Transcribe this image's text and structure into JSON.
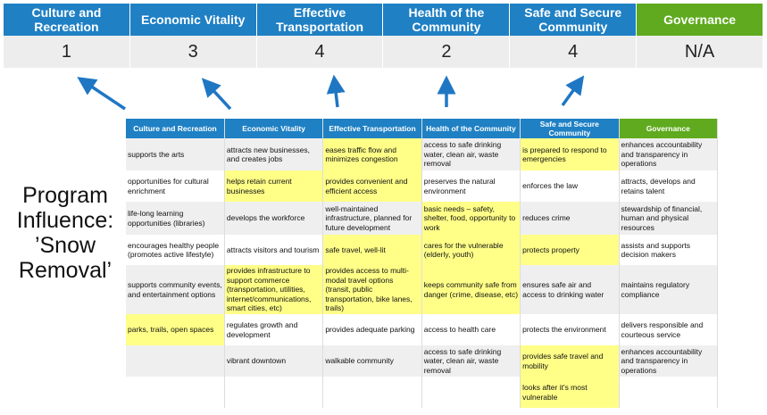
{
  "categories": [
    "Culture and Recreation",
    "Economic Vitality",
    "Effective Transportation",
    "Health of the Community",
    "Safe and Secure Community",
    "Governance"
  ],
  "scores": [
    "1",
    "3",
    "4",
    "2",
    "4",
    "N/A"
  ],
  "program_label": "Program Influence: ’Snow Removal’",
  "colors": {
    "header_blue": "#1F80C4",
    "governance_green": "#5FAA1E",
    "highlight_yellow": "#FFFF88",
    "arrow": "#1F77C4"
  },
  "table": {
    "headers": [
      "Culture and Recreation",
      "Economic Vitality",
      "Effective Transportation",
      "Health of the Community",
      "Safe and Secure Community",
      "Governance"
    ],
    "rows": [
      [
        {
          "t": "supports the arts"
        },
        {
          "t": "attracts new businesses, and creates jobs"
        },
        {
          "t": "eases traffic flow and minimizes congestion",
          "h": true
        },
        {
          "t": "access to safe drinking water, clean air, waste removal"
        },
        {
          "t": "is prepared to respond to emergencies",
          "h": true
        },
        {
          "t": "enhances accountability and transparency in operations"
        }
      ],
      [
        {
          "t": "opportunities for cultural enrichment"
        },
        {
          "t": "helps retain current businesses",
          "h": true
        },
        {
          "t": "provides convenient and efficient access",
          "h": true
        },
        {
          "t": "preserves the natural environment"
        },
        {
          "t": "enforces the law"
        },
        {
          "t": "attracts, develops and retains talent"
        }
      ],
      [
        {
          "t": "life-long learning opportunities (libraries)"
        },
        {
          "t": "develops the workforce"
        },
        {
          "t": "well-maintained infrastructure, planned for future development"
        },
        {
          "t": "basic needs – safety, shelter, food, opportunity to work",
          "h": true
        },
        {
          "t": "reduces crime"
        },
        {
          "t": "stewardship of financial, human and physical resources"
        }
      ],
      [
        {
          "t": "encourages healthy people (promotes active lifestyle)"
        },
        {
          "t": "attracts visitors and tourism"
        },
        {
          "t": "safe travel, well-lit",
          "h": true
        },
        {
          "t": "cares for the vulnerable (elderly, youth)",
          "h": true
        },
        {
          "t": "protects property",
          "h": true
        },
        {
          "t": "assists and supports decision makers"
        }
      ],
      [
        {
          "t": "supports community events, and entertainment options"
        },
        {
          "t": "provides infrastructure to support commerce (transportation, utilities, internet/communications, smart cities, etc)",
          "h": true
        },
        {
          "t": "provides access to multi-modal travel options (transit, public transportation, bike lanes, trails)",
          "h": true
        },
        {
          "t": "keeps community safe from danger (crime, disease, etc)",
          "h": true
        },
        {
          "t": "ensures safe air and access to drinking water"
        },
        {
          "t": "maintains regulatory compliance"
        }
      ],
      [
        {
          "t": "parks, trails, open spaces",
          "h": true
        },
        {
          "t": "regulates growth and development"
        },
        {
          "t": "provides adequate parking"
        },
        {
          "t": "access to health care"
        },
        {
          "t": "protects the environment"
        },
        {
          "t": "delivers responsible and courteous service"
        }
      ],
      [
        {
          "t": ""
        },
        {
          "t": "vibrant downtown"
        },
        {
          "t": "walkable community"
        },
        {
          "t": "access to safe drinking water, clean air, waste removal"
        },
        {
          "t": "provides safe travel and mobility",
          "h": true
        },
        {
          "t": "enhances accountability and transparency in operations"
        }
      ],
      [
        {
          "t": ""
        },
        {
          "t": ""
        },
        {
          "t": ""
        },
        {
          "t": ""
        },
        {
          "t": "looks after it's most vulnerable",
          "h": true
        },
        {
          "t": ""
        }
      ]
    ]
  }
}
